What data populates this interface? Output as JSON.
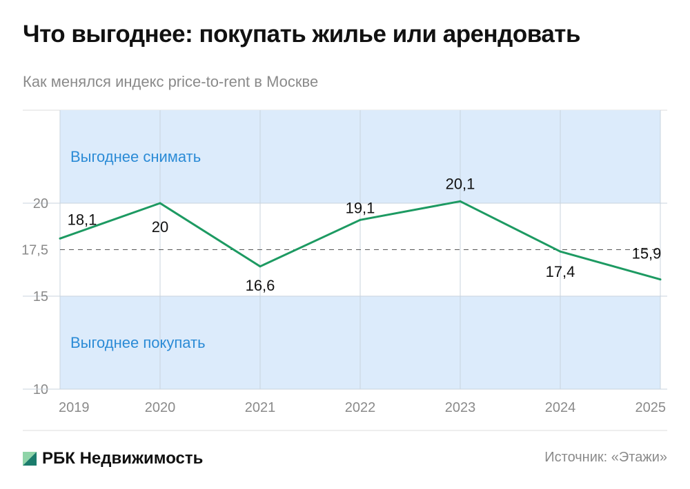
{
  "chart_data": {
    "type": "line",
    "title": "Что выгоднее: покупать жилье или арендовать",
    "subtitle": "Как менялся индекс price-to-rent в Москве",
    "categories": [
      "2019",
      "2020",
      "2021",
      "2022",
      "2023",
      "2024",
      "2025"
    ],
    "values": [
      18.1,
      20,
      16.6,
      19.1,
      20.1,
      17.4,
      15.9
    ],
    "data_labels": [
      "18,1",
      "20",
      "16,6",
      "19,1",
      "20,1",
      "17,4",
      "15,9"
    ],
    "ylim": [
      10,
      25
    ],
    "yticks": [
      {
        "value": 20,
        "label": "20"
      },
      {
        "value": 17.5,
        "label": "17,5"
      },
      {
        "value": 15,
        "label": "15"
      },
      {
        "value": 10,
        "label": "10"
      }
    ],
    "reference_line": 17.5,
    "zones": [
      {
        "label": "Выгоднее снимать",
        "from": 20,
        "to": 25
      },
      {
        "label": "Выгоднее покупать",
        "from": 10,
        "to": 15
      }
    ],
    "grid": true,
    "colors": {
      "line": "#1d9a62",
      "zone": "#dcebfb",
      "zone_text": "#2b8bd6",
      "axis_text": "#8a8a8a"
    }
  },
  "footer": {
    "brand": "РБК Недвижимость",
    "source": "Источник: «Этажи»"
  }
}
